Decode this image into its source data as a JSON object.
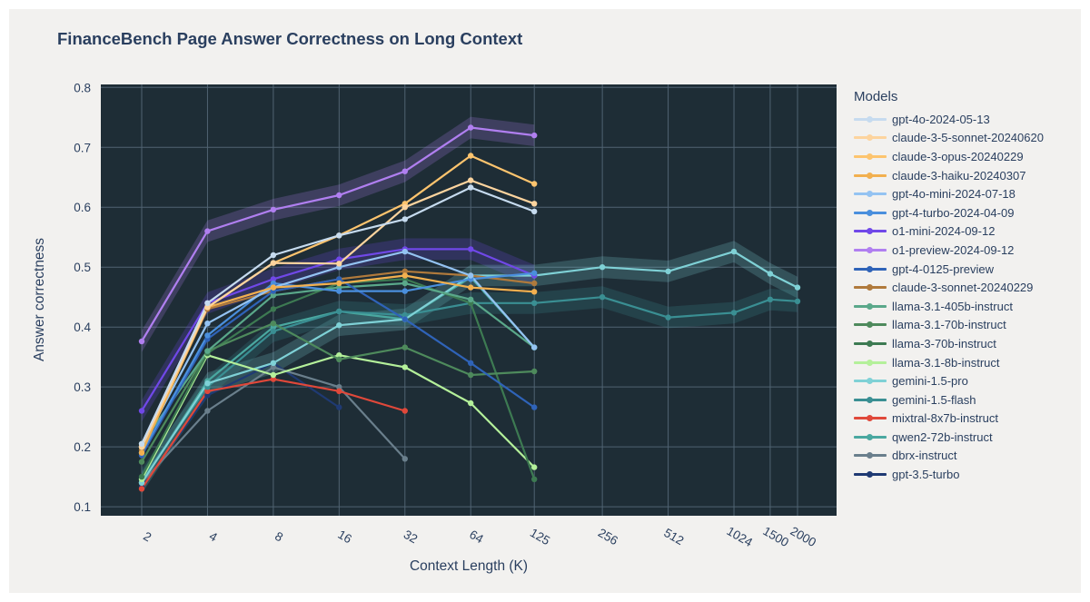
{
  "chart_data": {
    "type": "line",
    "title": "FinanceBench Page Answer Correctness on Long Context",
    "xlabel": "Context Length (K)",
    "ylabel": "Answer correctness",
    "x_scale": "log",
    "x_tick_labels": [
      "2",
      "4",
      "8",
      "16",
      "32",
      "64",
      "125",
      "256",
      "512",
      "1024",
      "1500",
      "2000"
    ],
    "y_ticks": [
      "0.1",
      "0.2",
      "0.3",
      "0.4",
      "0.5",
      "0.6",
      "0.7",
      "0.8"
    ],
    "ylim": [
      0.085,
      0.805
    ],
    "grid": true,
    "legend_title": "Models",
    "legend_position": "right",
    "series": [
      {
        "name": "gpt-4o-2024-05-13",
        "color": "#c6dbef",
        "band": false,
        "x": [
          2,
          4,
          8,
          16,
          32,
          64,
          125
        ],
        "values": [
          0.205,
          0.44,
          0.52,
          0.553,
          0.58,
          0.633,
          0.593
        ]
      },
      {
        "name": "claude-3-5-sonnet-20240620",
        "color": "#fdd49e",
        "band": false,
        "x": [
          2,
          4,
          8,
          16,
          32,
          64,
          125
        ],
        "values": [
          0.2,
          0.433,
          0.507,
          0.506,
          0.6,
          0.645,
          0.606
        ]
      },
      {
        "name": "claude-3-opus-20240229",
        "color": "#fdc46e",
        "band": false,
        "x": [
          2,
          4,
          8,
          16,
          32,
          64,
          125
        ],
        "values": [
          0.2,
          0.433,
          0.507,
          0.553,
          0.606,
          0.686,
          0.639
        ]
      },
      {
        "name": "claude-3-haiku-20240307",
        "color": "#f2b04f",
        "band": false,
        "x": [
          2,
          4,
          8,
          16,
          32,
          64,
          125
        ],
        "values": [
          0.19,
          0.433,
          0.466,
          0.473,
          0.486,
          0.466,
          0.459
        ]
      },
      {
        "name": "gpt-4o-mini-2024-07-18",
        "color": "#94c3f2",
        "band": false,
        "x": [
          2,
          4,
          8,
          16,
          32,
          64,
          125
        ],
        "values": [
          0.2,
          0.406,
          0.466,
          0.5,
          0.526,
          0.486,
          0.366
        ]
      },
      {
        "name": "gpt-4-turbo-2024-04-09",
        "color": "#4a8fdd",
        "band": false,
        "x": [
          2,
          4,
          8,
          16,
          32,
          64,
          125
        ],
        "values": [
          0.19,
          0.386,
          0.473,
          0.46,
          0.46,
          0.48,
          0.49
        ]
      },
      {
        "name": "o1-mini-2024-09-12",
        "color": "#7048e8",
        "band": true,
        "x": [
          2,
          4,
          8,
          16,
          32,
          64,
          125
        ],
        "values": [
          0.26,
          0.44,
          0.48,
          0.513,
          0.53,
          0.53,
          0.486
        ]
      },
      {
        "name": "o1-preview-2024-09-12",
        "color": "#b07ff0",
        "band": true,
        "x": [
          2,
          4,
          8,
          16,
          32,
          64,
          125
        ],
        "values": [
          0.376,
          0.56,
          0.596,
          0.62,
          0.66,
          0.733,
          0.72
        ]
      },
      {
        "name": "gpt-4-0125-preview",
        "color": "#2f63b8",
        "band": false,
        "x": [
          2,
          4,
          8,
          16,
          32,
          64,
          125
        ],
        "values": [
          0.186,
          0.38,
          0.46,
          0.48,
          0.413,
          0.34,
          0.266
        ]
      },
      {
        "name": "claude-3-sonnet-20240229",
        "color": "#b07a3c",
        "band": false,
        "x": [
          2,
          4,
          8,
          16,
          32,
          64,
          125
        ],
        "values": [
          0.195,
          0.43,
          0.46,
          0.48,
          0.493,
          0.486,
          0.473
        ]
      },
      {
        "name": "llama-3.1-405b-instruct",
        "color": "#5aa88a",
        "band": false,
        "x": [
          2,
          4,
          8,
          16,
          32,
          64,
          125
        ],
        "values": [
          0.205,
          0.36,
          0.453,
          0.466,
          0.473,
          0.446,
          0.366
        ]
      },
      {
        "name": "llama-3.1-70b-instruct",
        "color": "#4e8a5c",
        "band": false,
        "x": [
          2,
          4,
          8,
          16,
          32,
          64,
          125
        ],
        "values": [
          0.175,
          0.36,
          0.406,
          0.346,
          0.366,
          0.32,
          0.326
        ]
      },
      {
        "name": "llama-3-70b-instruct",
        "color": "#3d7a52",
        "band": false,
        "x": [
          2,
          4,
          8,
          16,
          32,
          64,
          125
        ],
        "values": [
          0.15,
          0.356,
          0.43,
          0.473,
          0.48,
          0.44,
          0.146
        ]
      },
      {
        "name": "llama-3.1-8b-instruct",
        "color": "#b4f09a",
        "band": false,
        "x": [
          2,
          4,
          8,
          16,
          32,
          64,
          125
        ],
        "values": [
          0.146,
          0.353,
          0.32,
          0.353,
          0.333,
          0.273,
          0.166
        ]
      },
      {
        "name": "gemini-1.5-pro",
        "color": "#7fd1d6",
        "band": true,
        "x": [
          2,
          4,
          8,
          16,
          32,
          64,
          125,
          256,
          512,
          1024,
          1500,
          2000
        ],
        "values": [
          0.14,
          0.306,
          0.34,
          0.403,
          0.413,
          0.486,
          0.486,
          0.5,
          0.493,
          0.526,
          0.489,
          0.466
        ]
      },
      {
        "name": "gemini-1.5-flash",
        "color": "#3a8f93",
        "band": true,
        "x": [
          2,
          4,
          8,
          16,
          32,
          64,
          125,
          256,
          512,
          1024,
          1500,
          2000
        ],
        "values": [
          0.146,
          0.3,
          0.393,
          0.426,
          0.42,
          0.44,
          0.44,
          0.45,
          0.416,
          0.424,
          0.446,
          0.443
        ]
      },
      {
        "name": "mixtral-8x7b-instruct",
        "color": "#e0483a",
        "band": false,
        "x": [
          2,
          4,
          8,
          16,
          32
        ],
        "values": [
          0.13,
          0.293,
          0.313,
          0.293,
          0.26
        ]
      },
      {
        "name": "qwen2-72b-instruct",
        "color": "#4aa8a0",
        "band": false,
        "x": [
          2,
          4,
          8,
          16,
          32,
          64,
          125
        ],
        "values": [
          0.14,
          0.31,
          0.4,
          0.426,
          0.413,
          0.483,
          0.366
        ]
      },
      {
        "name": "dbrx-instruct",
        "color": "#6a7f8c",
        "band": false,
        "x": [
          2,
          4,
          8,
          16,
          32
        ],
        "values": [
          0.14,
          0.26,
          0.333,
          0.3,
          0.18
        ]
      },
      {
        "name": "gpt-3.5-turbo",
        "color": "#1f3a73",
        "band": false,
        "x": [
          2,
          4,
          8,
          16
        ],
        "values": [
          0.133,
          0.286,
          0.34,
          0.266
        ]
      }
    ]
  }
}
